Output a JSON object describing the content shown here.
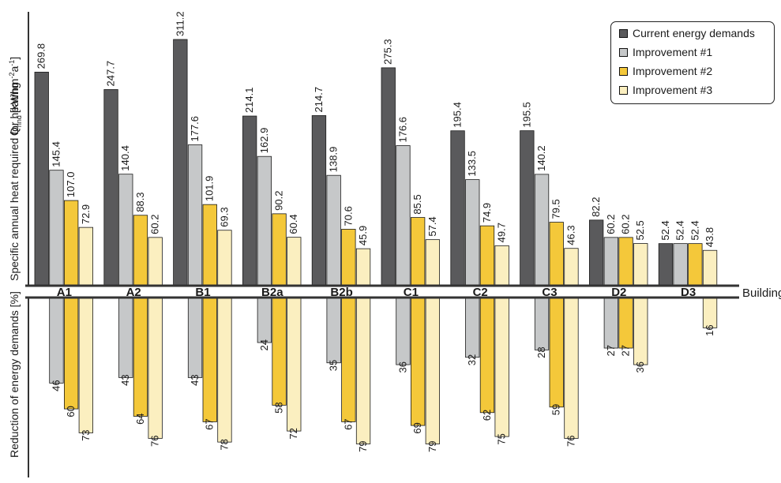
{
  "chart_data": {
    "type": "bar",
    "categories": [
      "A1",
      "A2",
      "B1",
      "B2a",
      "B2b",
      "C1",
      "C2",
      "C3",
      "D2",
      "D3"
    ],
    "xlabel": "Building type",
    "ylabel_top_symbol": "Q",
    "ylabel_top_subscript": "hnd",
    "ylabel_top_unit": "[kWhm",
    "ylabel_top_unit_exp1": "-2",
    "ylabel_top_unit_mid": "a",
    "ylabel_top_unit_exp2": "-1",
    "ylabel_top_unit_end": "]",
    "ylabel_top": "Specific annual heat required for heating",
    "ylabel_bottom": "Reduction of energy demands [%]",
    "series": [
      {
        "name": "Current energy demands",
        "color": "#5a5a5c",
        "values": [
          269.8,
          247.7,
          311.2,
          214.1,
          214.7,
          275.3,
          195.4,
          195.5,
          82.2,
          52.4
        ]
      },
      {
        "name": "Improvement #1",
        "color": "#c6c8c9",
        "values": [
          145.4,
          140.4,
          177.6,
          162.9,
          138.9,
          176.6,
          133.5,
          140.2,
          60.2,
          52.4
        ]
      },
      {
        "name": "Improvement #2",
        "color": "#f4c83a",
        "values": [
          107.0,
          88.3,
          101.9,
          90.2,
          70.6,
          85.5,
          74.9,
          79.5,
          60.2,
          52.4
        ]
      },
      {
        "name": "Improvement #3",
        "color": "#fbefc0",
        "values": [
          72.9,
          60.2,
          69.3,
          60.4,
          45.9,
          57.4,
          49.7,
          46.3,
          52.5,
          43.8
        ]
      }
    ],
    "value_labels": [
      [
        "269.8",
        "247.7",
        "311.2",
        "214.1",
        "214.7",
        "275.3",
        "195.4",
        "195.5",
        "82.2",
        "52.4"
      ],
      [
        "145.4",
        "140.4",
        "177.6",
        "162.9",
        "138.9",
        "176.6",
        "133.5",
        "140.2",
        "60.2",
        "52.4"
      ],
      [
        "107.0",
        "88.3",
        "101.9",
        "90.2",
        "70.6",
        "85.5",
        "74.9",
        "79.5",
        "60.2",
        "52.4"
      ],
      [
        "72.9",
        "60.2",
        "69.3",
        "60.4",
        "45.9",
        "57.4",
        "49.7",
        "46.3",
        "52.5",
        "43.8"
      ]
    ],
    "reduction_series": [
      {
        "name": "Current energy demands",
        "values": [
          null,
          null,
          null,
          null,
          null,
          null,
          null,
          null,
          null,
          null
        ]
      },
      {
        "name": "Improvement #1",
        "values": [
          46,
          43,
          43,
          24,
          35,
          36,
          32,
          28,
          27,
          null
        ]
      },
      {
        "name": "Improvement #2",
        "values": [
          60,
          64,
          67,
          58,
          67,
          69,
          62,
          59,
          27,
          null
        ]
      },
      {
        "name": "Improvement #3",
        "values": [
          73,
          76,
          78,
          72,
          79,
          79,
          75,
          76,
          36,
          16
        ]
      }
    ],
    "ylim_top": [
      0,
      311.2
    ],
    "ylim_bottom": [
      0,
      79
    ],
    "legend_position": "top-right",
    "grid": false
  }
}
